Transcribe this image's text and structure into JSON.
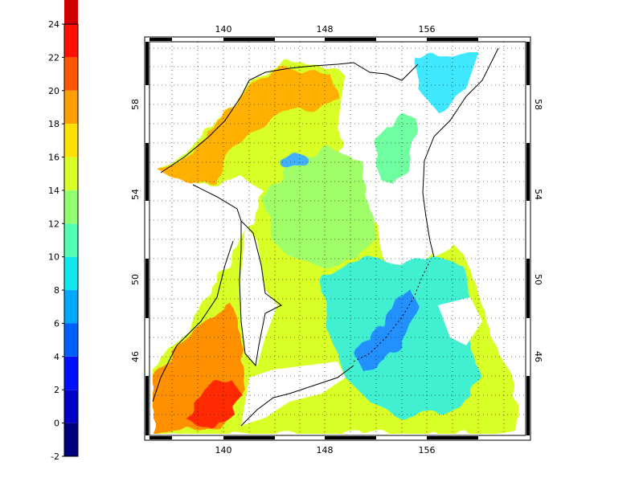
{
  "colorbar": {
    "ticks": [
      "-2",
      "0",
      "2",
      "4",
      "6",
      "8",
      "10",
      "12",
      "14",
      "16",
      "18",
      "20",
      "22",
      "24"
    ],
    "min": -2,
    "max": 24,
    "step": 2,
    "colors": [
      "#00007f",
      "#0000c8",
      "#0010ff",
      "#0060ff",
      "#00a8ff",
      "#10e8f0",
      "#50ffb0",
      "#90ff70",
      "#d8ff28",
      "#ffe000",
      "#ffa000",
      "#ff5800",
      "#ff1000",
      "#d00000"
    ]
  },
  "map": {
    "lon_ticks_top": [
      "140",
      "148",
      "156"
    ],
    "lon_ticks_bottom": [
      "140",
      "148",
      "156"
    ],
    "lat_ticks_left": [
      "58",
      "54",
      "50",
      "46"
    ],
    "lat_ticks_right": [
      "58",
      "54",
      "50",
      "46"
    ],
    "lon_range": [
      134,
      164
    ],
    "lat_range": [
      42,
      60
    ],
    "grid": "dotted",
    "land_color": "#ffffff",
    "coast_color": "#000000"
  }
}
